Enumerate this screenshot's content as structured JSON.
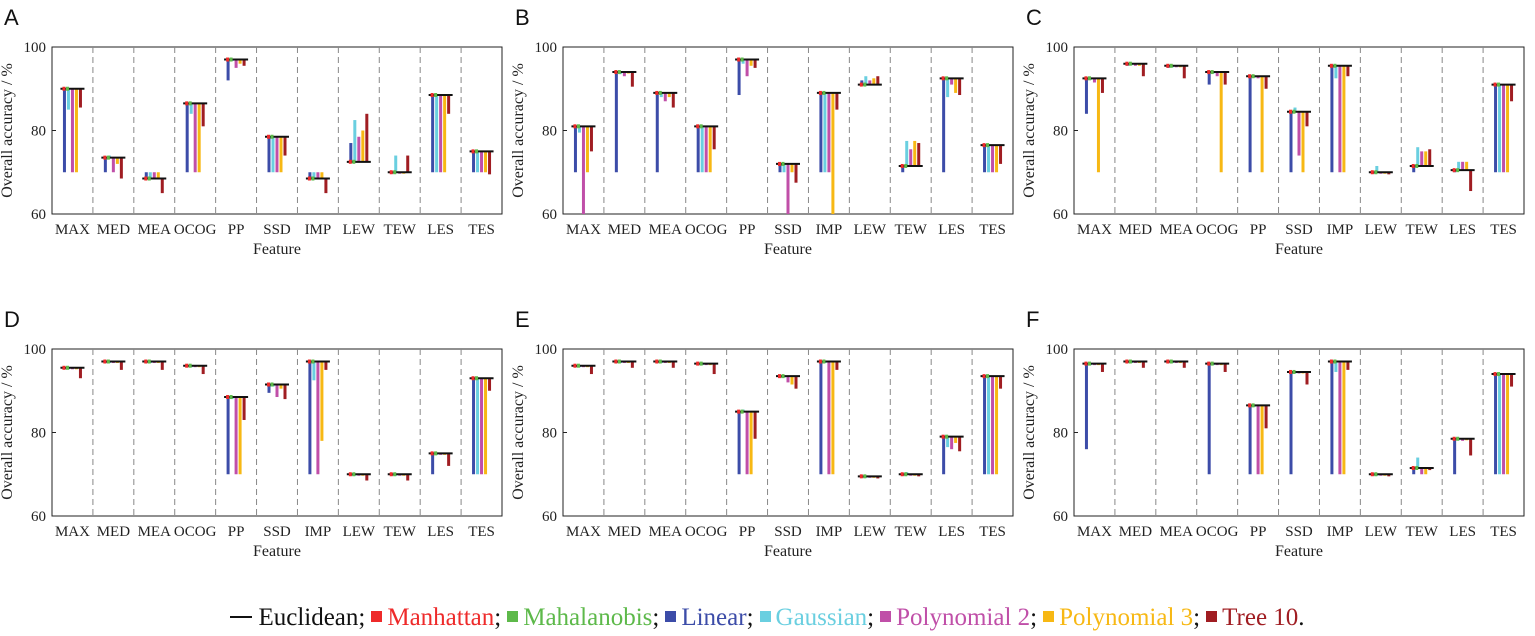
{
  "colors": {
    "Euclidean": "#111111",
    "Manhattan": "#ee2a2a",
    "Mahalanobis": "#5db94a",
    "Linear": "#3c4ca8",
    "Gaussian": "#6acfe0",
    "Polynomial 2": "#c04fa8",
    "Polynomial 3": "#f7b814",
    "Tree 10": "#a01d22"
  },
  "legend": [
    {
      "name": "Euclidean",
      "label": "Euclidean",
      "sep": ";",
      "symbol": "line"
    },
    {
      "name": "Manhattan",
      "label": "Manhattan",
      "sep": ";",
      "symbol": "square"
    },
    {
      "name": "Mahalanobis",
      "label": "Mahalanobis",
      "sep": ";",
      "symbol": "square"
    },
    {
      "name": "Linear",
      "label": "Linear",
      "sep": ";",
      "symbol": "square"
    },
    {
      "name": "Gaussian",
      "label": "Gaussian",
      "sep": ";",
      "symbol": "square"
    },
    {
      "name": "Polynomial 2",
      "label": "Polynomial 2",
      "sep": ";",
      "symbol": "square"
    },
    {
      "name": "Polynomial 3",
      "label": "Polynomial 3",
      "sep": ";",
      "symbol": "square"
    },
    {
      "name": "Tree 10",
      "label": "Tree 10",
      "sep": ".",
      "symbol": "square"
    }
  ],
  "chart_data": [
    {
      "panel": "A",
      "type": "bar",
      "xlabel": "Feature",
      "ylabel": "Overall accuracy / %",
      "ylim": [
        60,
        100
      ],
      "yticks": [
        60,
        80,
        100
      ],
      "categories": [
        "MAX",
        "MED",
        "MEA",
        "OCOG",
        "PP",
        "SSD",
        "IMP",
        "LEW",
        "TEW",
        "LES",
        "TES"
      ],
      "series": [
        {
          "name": "Euclidean",
          "values": [
            90,
            73.5,
            68.5,
            86.5,
            97,
            78.5,
            68.5,
            72.5,
            70,
            88.5,
            75
          ]
        },
        {
          "name": "Manhattan",
          "values": [
            90,
            73.5,
            68.5,
            86.5,
            97,
            78.5,
            68.5,
            72.5,
            70,
            88.5,
            75
          ]
        },
        {
          "name": "Mahalanobis",
          "values": [
            90,
            73.5,
            68.5,
            86.5,
            97,
            78.5,
            68.5,
            72.5,
            70,
            88.5,
            75
          ]
        },
        {
          "name": "Linear",
          "values": [
            70,
            70,
            70,
            70,
            92,
            70,
            70,
            77,
            70,
            70,
            70
          ]
        },
        {
          "name": "Gaussian",
          "values": [
            85,
            74,
            70,
            84,
            97,
            70,
            70,
            82.5,
            74,
            70,
            70
          ]
        },
        {
          "name": "Polynomial 2",
          "values": [
            70,
            70,
            70,
            70,
            95,
            70,
            70,
            78.5,
            70,
            70,
            70
          ]
        },
        {
          "name": "Polynomial 3",
          "values": [
            70,
            72,
            70,
            70,
            96,
            70,
            70,
            80,
            70,
            70,
            70
          ]
        },
        {
          "name": "Tree 10",
          "values": [
            85.5,
            68.5,
            65,
            81,
            95.5,
            74,
            65,
            84,
            74,
            84,
            69.5
          ]
        }
      ]
    },
    {
      "panel": "B",
      "type": "bar",
      "xlabel": "Feature",
      "ylabel": "Overall accuracy / %",
      "ylim": [
        60,
        100
      ],
      "yticks": [
        60,
        80,
        100
      ],
      "categories": [
        "MAX",
        "MED",
        "MEA",
        "OCOG",
        "PP",
        "SSD",
        "IMP",
        "LEW",
        "TEW",
        "LES",
        "TES"
      ],
      "series": [
        {
          "name": "Euclidean",
          "values": [
            81,
            94,
            89,
            81,
            97,
            72,
            89,
            91,
            71.5,
            92.5,
            76.5
          ]
        },
        {
          "name": "Manhattan",
          "values": [
            81,
            94,
            89,
            81,
            97,
            72,
            89,
            91,
            71.5,
            92.5,
            76.5
          ]
        },
        {
          "name": "Mahalanobis",
          "values": [
            81,
            94,
            89,
            81,
            97,
            72,
            89,
            91,
            71.5,
            92.5,
            76.5
          ]
        },
        {
          "name": "Linear",
          "values": [
            70,
            70,
            70,
            70,
            88.5,
            70,
            70,
            92,
            70,
            70,
            70
          ]
        },
        {
          "name": "Gaussian",
          "values": [
            79.5,
            93.5,
            88,
            70,
            96,
            70,
            70,
            93,
            77.5,
            88,
            70
          ]
        },
        {
          "name": "Polynomial 2",
          "values": [
            60,
            93,
            87,
            70,
            93,
            60,
            70,
            92,
            75.5,
            91,
            70
          ]
        },
        {
          "name": "Polynomial 3",
          "values": [
            70,
            94,
            88,
            70,
            95.5,
            70,
            60,
            92.5,
            77.5,
            89,
            70
          ]
        },
        {
          "name": "Tree 10",
          "values": [
            75,
            90.5,
            85.5,
            75.5,
            95,
            67.5,
            85,
            93,
            77,
            88.5,
            72
          ]
        }
      ]
    },
    {
      "panel": "C",
      "type": "bar",
      "xlabel": "Feature",
      "ylabel": "Overall accuracy / %",
      "ylim": [
        60,
        100
      ],
      "yticks": [
        60,
        80,
        100
      ],
      "categories": [
        "MAX",
        "MED",
        "MEA",
        "OCOG",
        "PP",
        "SSD",
        "IMP",
        "LEW",
        "TEW",
        "LES",
        "TES"
      ],
      "series": [
        {
          "name": "Euclidean",
          "values": [
            92.5,
            96,
            95.5,
            94,
            93,
            84.5,
            95.5,
            70,
            71.5,
            70.5,
            91
          ]
        },
        {
          "name": "Manhattan",
          "values": [
            92.5,
            96,
            95.5,
            94,
            93,
            84.5,
            95.5,
            70,
            71.5,
            70.5,
            91
          ]
        },
        {
          "name": "Mahalanobis",
          "values": [
            92.5,
            96,
            95.5,
            94,
            93,
            84.5,
            95.5,
            70,
            71.5,
            70.5,
            91
          ]
        },
        {
          "name": "Linear",
          "values": [
            84,
            95.5,
            95,
            91,
            70,
            70,
            70,
            70,
            70,
            70,
            70
          ]
        },
        {
          "name": "Gaussian",
          "values": [
            92.5,
            96,
            95.5,
            94,
            93,
            85.5,
            92.5,
            71.5,
            76,
            72.5,
            70
          ]
        },
        {
          "name": "Polynomial 2",
          "values": [
            91.5,
            95.5,
            95.5,
            93,
            92.5,
            74,
            70,
            70,
            75,
            72.5,
            70
          ]
        },
        {
          "name": "Polynomial 3",
          "values": [
            70,
            95.5,
            95.5,
            70,
            70,
            70,
            70,
            70,
            75,
            72.5,
            70
          ]
        },
        {
          "name": "Tree 10",
          "values": [
            89,
            93,
            92.5,
            91,
            90,
            81,
            93,
            69.5,
            75.5,
            65.5,
            87
          ]
        }
      ]
    },
    {
      "panel": "D",
      "type": "bar",
      "xlabel": "Feature",
      "ylabel": "Overall accuracy / %",
      "ylim": [
        60,
        100
      ],
      "yticks": [
        60,
        80,
        100
      ],
      "categories": [
        "MAX",
        "MED",
        "MEA",
        "OCOG",
        "PP",
        "SSD",
        "IMP",
        "LEW",
        "TEW",
        "LES",
        "TES"
      ],
      "series": [
        {
          "name": "Euclidean",
          "values": [
            95.5,
            97,
            97,
            96,
            88.5,
            91.5,
            97,
            70,
            70,
            75,
            93
          ]
        },
        {
          "name": "Manhattan",
          "values": [
            95.5,
            97,
            97,
            96,
            88.5,
            91.5,
            97,
            70,
            70,
            75,
            93
          ]
        },
        {
          "name": "Mahalanobis",
          "values": [
            95.5,
            97,
            97,
            96,
            88.5,
            91.5,
            97,
            70,
            70,
            75,
            93
          ]
        },
        {
          "name": "Linear",
          "values": [
            95.5,
            97,
            97,
            96,
            70,
            89.5,
            70,
            70,
            70,
            70,
            70
          ]
        },
        {
          "name": "Gaussian",
          "values": [
            95.5,
            97,
            97,
            96,
            88,
            91,
            92.5,
            70,
            70,
            75,
            70
          ]
        },
        {
          "name": "Polynomial 2",
          "values": [
            95.5,
            97,
            97,
            96,
            70,
            88.5,
            70,
            70,
            70,
            75,
            70
          ]
        },
        {
          "name": "Polynomial 3",
          "values": [
            95.5,
            97,
            97,
            96,
            70,
            90.5,
            78,
            70,
            70,
            75,
            70
          ]
        },
        {
          "name": "Tree 10",
          "values": [
            93,
            95,
            95,
            94,
            83,
            88,
            95,
            68.5,
            68.5,
            72,
            90
          ]
        }
      ]
    },
    {
      "panel": "E",
      "type": "bar",
      "xlabel": "Feature",
      "ylabel": "Overall accuracy / %",
      "ylim": [
        60,
        100
      ],
      "yticks": [
        60,
        80,
        100
      ],
      "categories": [
        "MAX",
        "MED",
        "MEA",
        "OCOG",
        "PP",
        "SSD",
        "IMP",
        "LEW",
        "TEW",
        "LES",
        "TES"
      ],
      "series": [
        {
          "name": "Euclidean",
          "values": [
            96,
            97,
            97,
            96.5,
            85,
            93.5,
            97,
            69.5,
            70,
            79,
            93.5
          ]
        },
        {
          "name": "Manhattan",
          "values": [
            96,
            97,
            97,
            96.5,
            85,
            93.5,
            97,
            69.5,
            70,
            79,
            93.5
          ]
        },
        {
          "name": "Mahalanobis",
          "values": [
            96,
            97,
            97,
            96.5,
            85,
            93.5,
            97,
            69.5,
            70,
            79,
            93.5
          ]
        },
        {
          "name": "Linear",
          "values": [
            96,
            97,
            97,
            96.5,
            70,
            93.5,
            70,
            69.5,
            70,
            70,
            70
          ]
        },
        {
          "name": "Gaussian",
          "values": [
            96,
            97,
            97,
            96.5,
            85.5,
            93.5,
            97,
            69.5,
            70.5,
            76.5,
            70
          ]
        },
        {
          "name": "Polynomial 2",
          "values": [
            96,
            97,
            97,
            96.5,
            70,
            92,
            70,
            69.5,
            70,
            76,
            70
          ]
        },
        {
          "name": "Polynomial 3",
          "values": [
            96,
            97,
            97,
            96.5,
            70,
            91.5,
            70,
            69.5,
            70,
            77.5,
            70
          ]
        },
        {
          "name": "Tree 10",
          "values": [
            94,
            95.5,
            95.5,
            94,
            78.5,
            90.5,
            95,
            69,
            69.5,
            75.5,
            90.5
          ]
        }
      ]
    },
    {
      "panel": "F",
      "type": "bar",
      "xlabel": "Feature",
      "ylabel": "Overall accuracy / %",
      "ylim": [
        60,
        100
      ],
      "yticks": [
        60,
        80,
        100
      ],
      "categories": [
        "MAX",
        "MED",
        "MEA",
        "OCOG",
        "PP",
        "SSD",
        "IMP",
        "LEW",
        "TEW",
        "LES",
        "TES"
      ],
      "series": [
        {
          "name": "Euclidean",
          "values": [
            96.5,
            97,
            97,
            96.5,
            86.5,
            94.5,
            97,
            70,
            71.5,
            78.5,
            94
          ]
        },
        {
          "name": "Manhattan",
          "values": [
            96.5,
            97,
            97,
            96.5,
            86.5,
            94.5,
            97,
            70,
            71.5,
            78.5,
            94
          ]
        },
        {
          "name": "Mahalanobis",
          "values": [
            96.5,
            97,
            97,
            96.5,
            86.5,
            94.5,
            97,
            70,
            71.5,
            78.5,
            94
          ]
        },
        {
          "name": "Linear",
          "values": [
            76,
            97,
            97,
            70,
            70,
            70,
            70,
            70,
            70,
            70,
            70
          ]
        },
        {
          "name": "Gaussian",
          "values": [
            96.5,
            97,
            97,
            96.5,
            86.5,
            94.5,
            94.5,
            70,
            74,
            78.5,
            70
          ]
        },
        {
          "name": "Polynomial 2",
          "values": [
            96.5,
            97,
            97,
            96.5,
            70,
            94.5,
            70,
            70,
            70,
            78,
            70
          ]
        },
        {
          "name": "Polynomial 3",
          "values": [
            96.5,
            97,
            97,
            96.5,
            70,
            94.5,
            70,
            70,
            70,
            78.5,
            70
          ]
        },
        {
          "name": "Tree 10",
          "values": [
            94.5,
            95.5,
            95.5,
            94.5,
            81,
            91.5,
            95,
            69.5,
            71,
            74.5,
            91
          ]
        }
      ]
    }
  ]
}
